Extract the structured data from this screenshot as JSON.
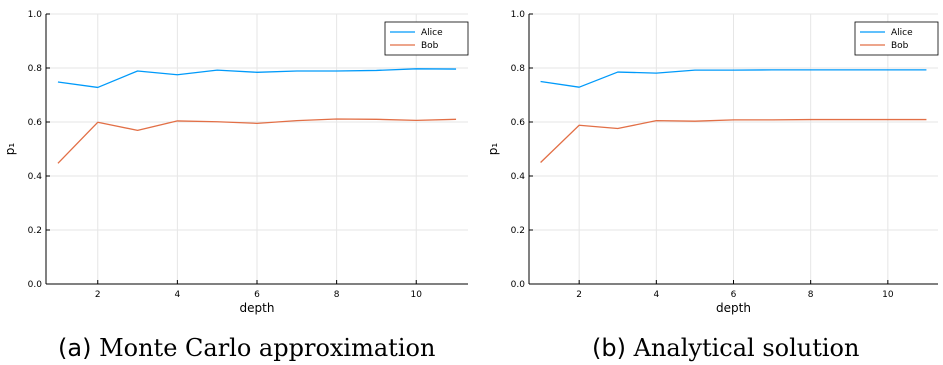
{
  "chart_data": [
    {
      "type": "line",
      "caption_tag": "(a)",
      "caption_text": "Monte Carlo approximation",
      "xlabel": "depth",
      "ylabel": "p₁",
      "xlim": [
        0.7,
        11.3
      ],
      "ylim": [
        0,
        1
      ],
      "xticks": [
        2,
        4,
        6,
        8,
        10
      ],
      "yticks": [
        0.0,
        0.2,
        0.4,
        0.6,
        0.8,
        1.0
      ],
      "ytick_labels": [
        "0.0",
        "0.2",
        "0.4",
        "0.6",
        "0.8",
        "1.0"
      ],
      "grid": true,
      "legend_position": "top-right",
      "x": [
        1,
        2,
        3,
        4,
        5,
        6,
        7,
        8,
        9,
        10,
        11
      ],
      "series": [
        {
          "name": "Alice",
          "color": "#009AFA",
          "values": [
            0.748,
            0.728,
            0.789,
            0.775,
            0.792,
            0.784,
            0.789,
            0.789,
            0.791,
            0.797,
            0.796
          ]
        },
        {
          "name": "Bob",
          "color": "#E26F46",
          "values": [
            0.447,
            0.599,
            0.569,
            0.604,
            0.601,
            0.595,
            0.605,
            0.611,
            0.61,
            0.606,
            0.61
          ]
        }
      ]
    },
    {
      "type": "line",
      "caption_tag": "(b)",
      "caption_text": "Analytical solution",
      "xlabel": "depth",
      "ylabel": "p₁",
      "xlim": [
        0.7,
        11.3
      ],
      "ylim": [
        0,
        1
      ],
      "xticks": [
        2,
        4,
        6,
        8,
        10
      ],
      "yticks": [
        0.0,
        0.2,
        0.4,
        0.6,
        0.8,
        1.0
      ],
      "ytick_labels": [
        "0.0",
        "0.2",
        "0.4",
        "0.6",
        "0.8",
        "1.0"
      ],
      "grid": true,
      "legend_position": "top-right",
      "x": [
        1,
        2,
        3,
        4,
        5,
        6,
        7,
        8,
        9,
        10,
        11
      ],
      "series": [
        {
          "name": "Alice",
          "color": "#009AFA",
          "values": [
            0.75,
            0.729,
            0.785,
            0.781,
            0.792,
            0.792,
            0.793,
            0.793,
            0.793,
            0.793,
            0.793
          ]
        },
        {
          "name": "Bob",
          "color": "#E26F46",
          "values": [
            0.45,
            0.588,
            0.576,
            0.605,
            0.603,
            0.608,
            0.608,
            0.609,
            0.609,
            0.609,
            0.609
          ]
        }
      ]
    }
  ]
}
